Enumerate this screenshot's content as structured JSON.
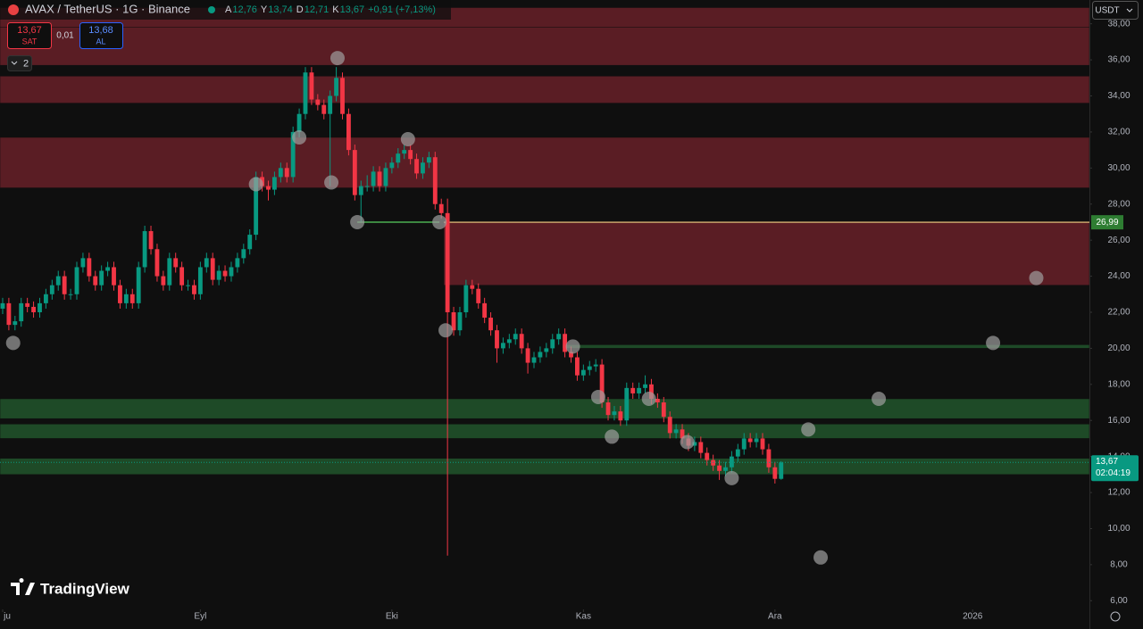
{
  "header": {
    "symbol": "AVAX / TetherUS · 1G · Binance",
    "ohlc_labels": [
      {
        "key": "A",
        "value": "12,76"
      },
      {
        "key": "Y",
        "value": "13,74"
      },
      {
        "key": "D",
        "value": "12,71"
      },
      {
        "key": "K",
        "value": "13,67"
      }
    ],
    "change": "+0,91 (+7,13%)",
    "sell": {
      "price": "13,67",
      "label": "SAT"
    },
    "spread": "0,01",
    "buy": {
      "price": "13,68",
      "label": "AL"
    },
    "indicators": "2"
  },
  "currency": "USDT",
  "logo": "TradingView",
  "chart_data": {
    "type": "candlestick",
    "up_color": "#089981",
    "down_color": "#f23645",
    "ohlc": [
      [
        22.2,
        22.8,
        21.9,
        22.5
      ],
      [
        22.5,
        22.8,
        21.0,
        21.3
      ],
      [
        21.3,
        21.8,
        21.0,
        21.5
      ],
      [
        21.5,
        22.8,
        21.2,
        22.5
      ],
      [
        22.5,
        22.8,
        22.0,
        22.3
      ],
      [
        22.3,
        22.6,
        21.7,
        22.0
      ],
      [
        22.0,
        22.8,
        21.7,
        22.5
      ],
      [
        22.5,
        23.3,
        22.2,
        23.0
      ],
      [
        23.0,
        23.8,
        22.7,
        23.5
      ],
      [
        23.5,
        24.3,
        23.2,
        24.0
      ],
      [
        24.0,
        24.3,
        22.7,
        23.0
      ],
      [
        23.0,
        23.3,
        22.7,
        23.0
      ],
      [
        23.0,
        24.8,
        22.7,
        24.5
      ],
      [
        24.5,
        25.3,
        24.2,
        25.0
      ],
      [
        25.0,
        25.3,
        23.7,
        24.0
      ],
      [
        24.0,
        24.3,
        23.2,
        23.5
      ],
      [
        23.5,
        24.6,
        23.2,
        24.3
      ],
      [
        24.3,
        24.8,
        24.0,
        24.5
      ],
      [
        24.5,
        24.8,
        23.2,
        23.5
      ],
      [
        23.5,
        23.8,
        22.2,
        22.5
      ],
      [
        22.5,
        23.3,
        22.2,
        23.0
      ],
      [
        23.0,
        23.3,
        22.2,
        22.5
      ],
      [
        22.5,
        24.8,
        22.2,
        24.5
      ],
      [
        24.5,
        26.8,
        24.2,
        26.5
      ],
      [
        26.5,
        26.8,
        25.2,
        25.5
      ],
      [
        25.5,
        25.8,
        23.7,
        24.0
      ],
      [
        24.0,
        24.3,
        23.2,
        23.5
      ],
      [
        23.5,
        25.3,
        23.2,
        25.0
      ],
      [
        25.0,
        25.3,
        24.2,
        24.5
      ],
      [
        24.5,
        24.8,
        23.2,
        23.5
      ],
      [
        23.5,
        23.8,
        23.2,
        23.5
      ],
      [
        23.5,
        23.8,
        22.7,
        23.0
      ],
      [
        23.0,
        24.8,
        22.7,
        24.5
      ],
      [
        24.5,
        25.3,
        24.2,
        25.0
      ],
      [
        25.0,
        25.3,
        23.5,
        23.8
      ],
      [
        23.8,
        24.6,
        23.5,
        24.3
      ],
      [
        24.3,
        24.6,
        23.7,
        24.0
      ],
      [
        24.0,
        24.8,
        23.7,
        24.5
      ],
      [
        24.5,
        25.3,
        24.2,
        25.0
      ],
      [
        25.0,
        25.8,
        24.7,
        25.5
      ],
      [
        25.5,
        26.6,
        25.2,
        26.3
      ],
      [
        26.3,
        29.8,
        26.0,
        29.5
      ],
      [
        29.5,
        29.8,
        28.7,
        29.0
      ],
      [
        29.0,
        29.3,
        28.2,
        28.8
      ],
      [
        28.8,
        29.8,
        28.5,
        29.5
      ],
      [
        29.5,
        30.3,
        29.2,
        30.0
      ],
      [
        30.0,
        30.3,
        29.2,
        29.5
      ],
      [
        29.5,
        32.3,
        29.2,
        32.0
      ],
      [
        32.0,
        33.3,
        31.7,
        33.0
      ],
      [
        33.0,
        35.6,
        32.7,
        35.3
      ],
      [
        35.3,
        35.6,
        33.5,
        33.8
      ],
      [
        33.8,
        34.1,
        33.2,
        33.5
      ],
      [
        33.5,
        33.8,
        32.7,
        33.0
      ],
      [
        33.0,
        34.3,
        29.0,
        34.0
      ],
      [
        34.0,
        35.6,
        33.7,
        35.0
      ],
      [
        35.0,
        35.3,
        32.7,
        33.0
      ],
      [
        33.0,
        33.3,
        30.7,
        31.0
      ],
      [
        31.0,
        31.3,
        28.2,
        28.5
      ],
      [
        28.5,
        29.3,
        27.0,
        29.0
      ],
      [
        29.0,
        29.6,
        28.7,
        29.0
      ],
      [
        29.0,
        30.1,
        28.7,
        29.8
      ],
      [
        29.8,
        30.1,
        28.7,
        29.0
      ],
      [
        29.0,
        30.3,
        28.7,
        30.0
      ],
      [
        30.0,
        30.6,
        29.7,
        30.3
      ],
      [
        30.3,
        31.1,
        30.0,
        30.8
      ],
      [
        30.8,
        31.3,
        30.5,
        31.0
      ],
      [
        31.0,
        31.3,
        30.2,
        30.5
      ],
      [
        30.5,
        30.8,
        29.4,
        29.7
      ],
      [
        29.7,
        30.6,
        29.4,
        30.3
      ],
      [
        30.3,
        30.9,
        30.0,
        30.6
      ],
      [
        30.6,
        30.9,
        27.7,
        28.0
      ],
      [
        28.0,
        28.3,
        27.2,
        27.5
      ],
      [
        27.5,
        28.3,
        8.5,
        22.0
      ],
      [
        22.0,
        22.3,
        20.7,
        21.0
      ],
      [
        21.0,
        22.3,
        20.7,
        22.0
      ],
      [
        22.0,
        23.8,
        21.7,
        23.5
      ],
      [
        23.5,
        23.8,
        23.0,
        23.3
      ],
      [
        23.3,
        23.6,
        22.2,
        22.5
      ],
      [
        22.5,
        22.8,
        21.4,
        21.7
      ],
      [
        21.7,
        22.0,
        20.7,
        21.0
      ],
      [
        21.0,
        21.3,
        19.2,
        20.0
      ],
      [
        20.0,
        20.6,
        19.7,
        20.3
      ],
      [
        20.3,
        20.8,
        20.0,
        20.5
      ],
      [
        20.5,
        21.1,
        20.2,
        20.8
      ],
      [
        20.8,
        21.1,
        19.7,
        20.0
      ],
      [
        20.0,
        20.3,
        18.6,
        19.2
      ],
      [
        19.2,
        19.8,
        18.9,
        19.5
      ],
      [
        19.5,
        20.1,
        19.2,
        19.8
      ],
      [
        19.8,
        20.3,
        19.5,
        20.0
      ],
      [
        20.0,
        20.8,
        19.7,
        20.5
      ],
      [
        20.5,
        21.1,
        20.2,
        20.8
      ],
      [
        20.8,
        21.1,
        19.5,
        19.8
      ],
      [
        19.8,
        20.1,
        19.2,
        19.5
      ],
      [
        19.5,
        19.8,
        18.2,
        18.5
      ],
      [
        18.5,
        19.1,
        18.2,
        18.8
      ],
      [
        18.8,
        19.3,
        18.5,
        19.0
      ],
      [
        19.0,
        19.4,
        18.7,
        19.1
      ],
      [
        19.1,
        19.4,
        16.7,
        17.0
      ],
      [
        17.0,
        17.3,
        16.0,
        16.3
      ],
      [
        16.3,
        16.8,
        16.0,
        16.5
      ],
      [
        16.5,
        16.8,
        15.7,
        16.0
      ],
      [
        16.0,
        18.1,
        15.7,
        17.8
      ],
      [
        17.8,
        18.1,
        17.2,
        17.5
      ],
      [
        17.5,
        18.1,
        17.2,
        17.8
      ],
      [
        17.8,
        18.5,
        17.5,
        18.0
      ],
      [
        18.0,
        18.3,
        16.9,
        17.2
      ],
      [
        17.2,
        17.5,
        16.7,
        17.0
      ],
      [
        17.0,
        17.3,
        15.9,
        16.2
      ],
      [
        16.2,
        16.5,
        15.0,
        15.3
      ],
      [
        15.3,
        15.8,
        15.0,
        15.5
      ],
      [
        15.5,
        15.8,
        14.7,
        15.0
      ],
      [
        15.0,
        15.3,
        14.3,
        14.6
      ],
      [
        14.6,
        15.1,
        14.3,
        14.8
      ],
      [
        14.8,
        15.1,
        13.9,
        14.2
      ],
      [
        14.2,
        14.5,
        13.5,
        13.8
      ],
      [
        13.8,
        14.1,
        13.2,
        13.5
      ],
      [
        13.5,
        13.8,
        12.7,
        13.2
      ],
      [
        13.2,
        13.7,
        12.9,
        13.4
      ],
      [
        13.4,
        14.3,
        13.1,
        14.0
      ],
      [
        14.0,
        14.7,
        13.7,
        14.4
      ],
      [
        14.4,
        15.3,
        14.1,
        15.0
      ],
      [
        15.0,
        15.3,
        14.5,
        14.8
      ],
      [
        14.8,
        15.3,
        14.5,
        15.0
      ],
      [
        15.0,
        15.3,
        14.1,
        14.4
      ],
      [
        14.4,
        14.7,
        13.1,
        13.4
      ],
      [
        13.4,
        13.7,
        12.5,
        12.76
      ],
      [
        12.76,
        13.74,
        12.71,
        13.67
      ]
    ],
    "xlim": [
      -0.43,
      175.9
    ],
    "xticks": [
      {
        "value": 0,
        "label": "ju"
      },
      {
        "value": 32,
        "label": "Eyl"
      },
      {
        "value": 63,
        "label": "Eki"
      },
      {
        "value": 94,
        "label": "Kas"
      },
      {
        "value": 125,
        "label": "Ara"
      },
      {
        "value": 157,
        "label": "2026"
      }
    ],
    "ylim": [
      5.52,
      39.32
    ],
    "yticks": [
      {
        "value": 6,
        "label": "6,00"
      },
      {
        "value": 8,
        "label": "8,00"
      },
      {
        "value": 10,
        "label": "10,00"
      },
      {
        "value": 12,
        "label": "12,00"
      },
      {
        "value": 14,
        "label": "14,00"
      },
      {
        "value": 16,
        "label": "16,00"
      },
      {
        "value": 18,
        "label": "18,00"
      },
      {
        "value": 20,
        "label": "20,00"
      },
      {
        "value": 22,
        "label": "22,00"
      },
      {
        "value": 24,
        "label": "24,00"
      },
      {
        "value": 26,
        "label": "26,00"
      },
      {
        "value": 28,
        "label": "28,00"
      },
      {
        "value": 30,
        "label": "30,00"
      },
      {
        "value": 32,
        "label": "32,00"
      },
      {
        "value": 34,
        "label": "34,00"
      },
      {
        "value": 36,
        "label": "36,00"
      },
      {
        "value": 38,
        "label": "38,00"
      }
    ],
    "zones": [
      {
        "y0": 37.8,
        "y1": 38.9,
        "color": "#5a1d24"
      },
      {
        "y0": 35.7,
        "y1": 37.8,
        "color": "#5a1d24"
      },
      {
        "y0": 33.6,
        "y1": 35.1,
        "color": "#5a1d24"
      },
      {
        "y0": 28.9,
        "y1": 31.7,
        "color": "#5a1d24"
      },
      {
        "y0": 23.5,
        "y1": 27.0,
        "x0": 71.4,
        "color": "#5a1d24"
      },
      {
        "y0": 20.0,
        "y1": 20.2,
        "x0": 90.6,
        "color": "#1e4a27"
      },
      {
        "y0": 16.1,
        "y1": 17.2,
        "color": "#1e4a27"
      },
      {
        "y0": 15.0,
        "y1": 15.8,
        "color": "#1e4a27"
      },
      {
        "y0": 13.0,
        "y1": 13.9,
        "color": "#1e4a27"
      }
    ],
    "lines": [
      {
        "y": 26.99,
        "x0": 71.4,
        "color": "#c9a36a",
        "label": "26,99"
      },
      {
        "y": 27.0,
        "x0": 57.4,
        "x1": 70.7,
        "color": "#4caf50"
      }
    ],
    "markers": [
      {
        "x": 1.7,
        "y": 20.3
      },
      {
        "x": 41,
        "y": 29.1
      },
      {
        "x": 48,
        "y": 31.7
      },
      {
        "x": 53.2,
        "y": 29.2
      },
      {
        "x": 54.2,
        "y": 36.1
      },
      {
        "x": 57.4,
        "y": 27.0
      },
      {
        "x": 65.6,
        "y": 31.6
      },
      {
        "x": 70.7,
        "y": 27.0
      },
      {
        "x": 71.7,
        "y": 21.0
      },
      {
        "x": 92.3,
        "y": 20.1
      },
      {
        "x": 96.4,
        "y": 17.3
      },
      {
        "x": 98.6,
        "y": 15.1
      },
      {
        "x": 104.6,
        "y": 17.2
      },
      {
        "x": 110.8,
        "y": 14.8
      },
      {
        "x": 118,
        "y": 12.8
      },
      {
        "x": 130.4,
        "y": 15.5
      },
      {
        "x": 132.4,
        "y": 8.4
      },
      {
        "x": 141.8,
        "y": 17.2
      },
      {
        "x": 160.3,
        "y": 20.3
      },
      {
        "x": 167.3,
        "y": 23.9
      }
    ],
    "last_price": {
      "value": 13.67,
      "label": "13,67",
      "countdown": "02:04:19"
    }
  }
}
